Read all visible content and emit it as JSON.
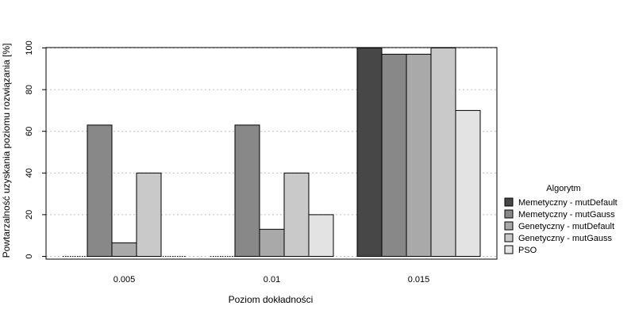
{
  "chart_data": {
    "type": "bar",
    "xlabel": "Poziom dokładności",
    "ylabel": "Powtarzalność uzyskania poziomu rozwiązania [%]",
    "categories": [
      "0.005",
      "0.01",
      "0.015"
    ],
    "ylim": [
      0,
      100
    ],
    "yticks": [
      0,
      20,
      40,
      60,
      80,
      100
    ],
    "grid": "horizontal dotted",
    "legend": {
      "title": "Algorytm",
      "placement": "right"
    },
    "series": [
      {
        "name": "Memetyczny - mutDefault",
        "color": "#474747",
        "values": [
          0,
          0,
          100
        ]
      },
      {
        "name": "Memetyczny - mutGauss",
        "color": "#888888",
        "values": [
          63,
          63,
          97
        ]
      },
      {
        "name": "Genetyczny - mutDefault",
        "color": "#a9a9a9",
        "values": [
          6.5,
          13,
          97
        ]
      },
      {
        "name": "Genetyczny - mutGauss",
        "color": "#c9c9c9",
        "values": [
          40,
          40,
          100
        ]
      },
      {
        "name": "PSO",
        "color": "#e3e3e3",
        "values": [
          0,
          20,
          70
        ]
      }
    ]
  }
}
